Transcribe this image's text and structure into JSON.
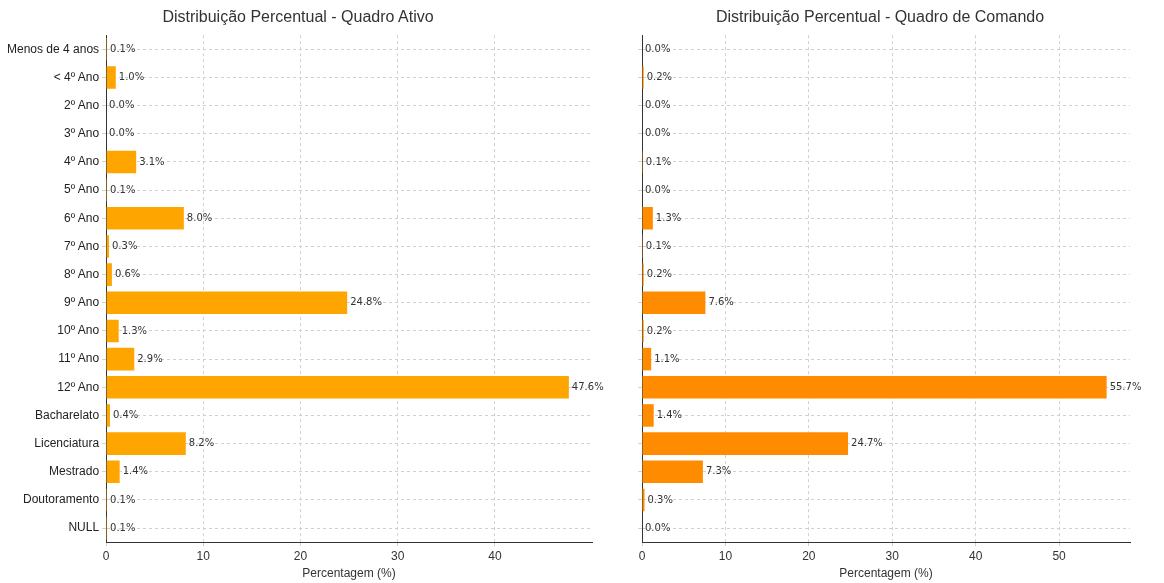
{
  "chart_data": [
    {
      "type": "bar",
      "orientation": "horizontal",
      "title": "Distribuição Percentual - Quadro Ativo",
      "xlabel": "Percentagem (%)",
      "categories": [
        "Menos de 4 anos",
        "< 4º Ano",
        "2º Ano",
        "3º Ano",
        "4º Ano",
        "5º Ano",
        "6º Ano",
        "7º Ano",
        "8º Ano",
        "9º Ano",
        "10º Ano",
        "11º Ano",
        "12º Ano",
        "Bacharelato",
        "Licenciatura",
        "Mestrado",
        "Doutoramento",
        "NULL"
      ],
      "values": [
        0.1,
        1.0,
        0.0,
        0.0,
        3.1,
        0.1,
        8.0,
        0.3,
        0.6,
        24.8,
        1.3,
        2.9,
        47.6,
        0.4,
        8.2,
        1.4,
        0.1,
        0.1
      ],
      "value_labels": [
        "0.1%",
        "1.0%",
        "0.0%",
        "0.0%",
        "3.1%",
        "0.1%",
        "8.0%",
        "0.3%",
        "0.6%",
        "24.8%",
        "1.3%",
        "2.9%",
        "47.6%",
        "0.4%",
        "8.2%",
        "1.4%",
        "0.1%",
        "0.1%"
      ],
      "color": "#ffa500",
      "xlim": [
        0,
        49.98
      ],
      "xticks": [
        0,
        10,
        20,
        30,
        40
      ],
      "grid": true
    },
    {
      "type": "bar",
      "orientation": "horizontal",
      "title": "Distribuição Percentual - Quadro de Comando",
      "xlabel": "Percentagem (%)",
      "categories": [
        null,
        null,
        null,
        null,
        null,
        null,
        null,
        null,
        null,
        null,
        null,
        null,
        null,
        null,
        null,
        null,
        null,
        null
      ],
      "values": [
        0.0,
        0.2,
        0.0,
        0.0,
        0.1,
        0.0,
        1.3,
        0.1,
        0.2,
        7.6,
        0.2,
        1.1,
        55.7,
        1.4,
        24.7,
        7.3,
        0.3,
        0.0
      ],
      "value_labels": [
        "0.0%",
        "0.2%",
        "0.0%",
        "0.0%",
        "0.1%",
        "0.0%",
        "1.3%",
        "0.1%",
        "0.2%",
        "7.6%",
        "0.2%",
        "1.1%",
        "55.7%",
        "1.4%",
        "24.7%",
        "7.3%",
        "0.3%",
        "0.0%"
      ],
      "color": "#ff8c00",
      "xlim": [
        0,
        58.5
      ],
      "xticks": [
        0,
        10,
        20,
        30,
        40,
        50
      ],
      "grid": true,
      "tick_labels": "x"
    }
  ]
}
